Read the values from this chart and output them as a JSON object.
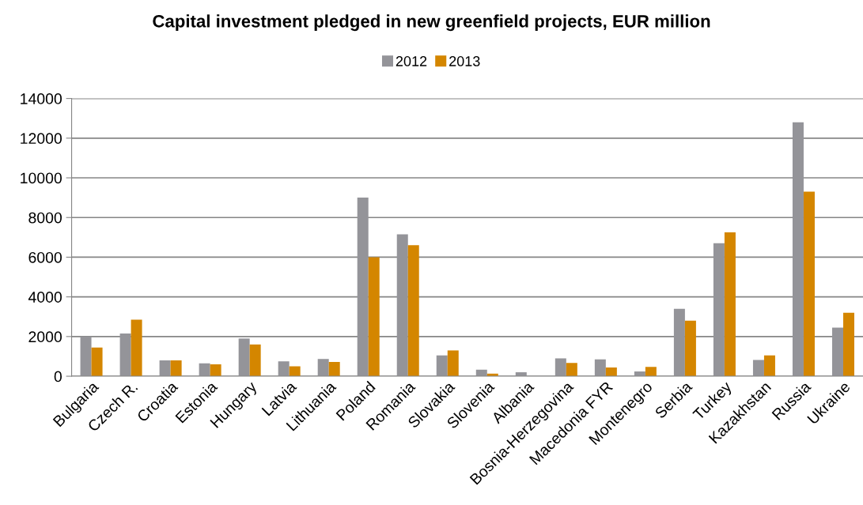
{
  "chart_data": {
    "type": "bar",
    "title": "Capital investment pledged in new greenfield projects, EUR million",
    "categories": [
      "Bulgaria",
      "Czech R.",
      "Croatia",
      "Estonia",
      "Hungary",
      "Latvia",
      "Lithuania",
      "Poland",
      "Romania",
      "Slovakia",
      "Slovenia",
      "Albania",
      "Bosnia-Herzegovina",
      "Macedonia FYR",
      "Montenegro",
      "Serbia",
      "Turkey",
      "Kazakhstan",
      "Russia",
      "Ukraine"
    ],
    "series": [
      {
        "name": "2012",
        "color": "#949499",
        "values": [
          2000,
          2150,
          800,
          650,
          1900,
          750,
          870,
          9000,
          7150,
          1050,
          330,
          200,
          900,
          850,
          240,
          3400,
          6700,
          820,
          12800,
          2450
        ]
      },
      {
        "name": "2013",
        "color": "#d48600",
        "values": [
          1450,
          2850,
          800,
          600,
          1600,
          500,
          720,
          6000,
          6600,
          1300,
          130,
          null,
          670,
          440,
          470,
          2800,
          7250,
          1050,
          9300,
          3200
        ]
      }
    ],
    "ylim": [
      0,
      14000
    ],
    "yticks": [
      0,
      2000,
      4000,
      6000,
      8000,
      10000,
      12000,
      14000
    ],
    "grid": "y",
    "legend": "top"
  }
}
